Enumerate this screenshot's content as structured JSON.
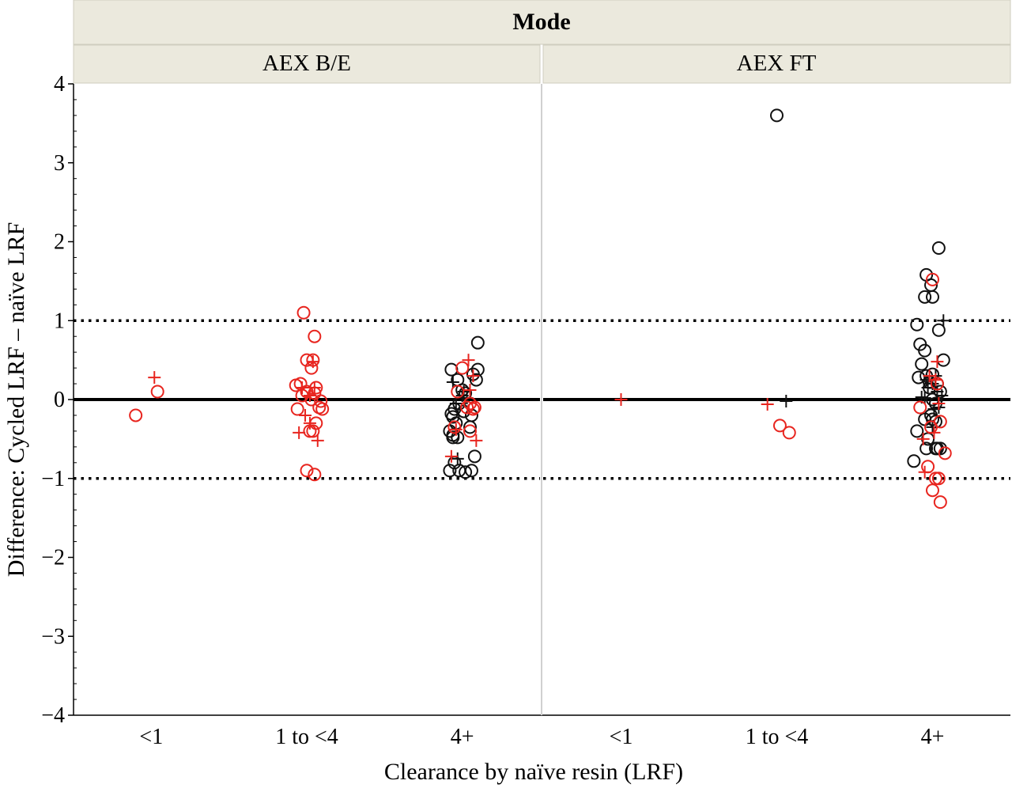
{
  "chart_data": {
    "type": "scatter",
    "facet_header": "Mode",
    "panels": [
      "AEX B/E",
      "AEX FT"
    ],
    "xlabel": "Clearance by naïve resin (LRF)",
    "ylabel": "Difference:  Cycled LRF – naïve LRF",
    "categories": [
      "<1",
      "1 to <4",
      "4+"
    ],
    "ylim": [
      -4,
      4
    ],
    "yticks": [
      "4",
      "3",
      "2",
      "1",
      "0",
      "−1",
      "−2",
      "−3",
      "−4"
    ],
    "reference_lines": [
      {
        "y": 0,
        "style": "solid"
      },
      {
        "y": 1,
        "style": "dotted"
      },
      {
        "y": -1,
        "style": "dotted"
      }
    ],
    "colors": {
      "red": "#e8251f",
      "black": "#111111",
      "strip": "#ebe9dd",
      "divider": "#d0d0d0"
    },
    "series": [
      {
        "panel": 0,
        "cat": 0,
        "marker": "circle",
        "color": "red",
        "jitter": [
          -0.1,
          0.04
        ],
        "values": [
          -0.2,
          0.1
        ]
      },
      {
        "panel": 0,
        "cat": 0,
        "marker": "plus",
        "color": "red",
        "jitter": [
          0.02
        ],
        "values": [
          0.28
        ]
      },
      {
        "panel": 0,
        "cat": 1,
        "marker": "circle",
        "color": "red",
        "jitter": [
          -0.02,
          0.05,
          0.04,
          0.0,
          0.03,
          -0.04,
          0.06,
          -0.07,
          0.0,
          0.05,
          -0.03,
          0.03,
          0.09,
          0.08,
          -0.06,
          0.1,
          0.06,
          0.04,
          0.02,
          0.0,
          0.05
        ],
        "values": [
          1.1,
          0.8,
          0.5,
          0.5,
          0.4,
          0.2,
          0.15,
          0.18,
          0.1,
          0.08,
          0.05,
          0.0,
          -0.02,
          -0.1,
          -0.12,
          -0.12,
          -0.3,
          -0.4,
          -0.4,
          -0.9,
          -0.95
        ]
      },
      {
        "panel": 0,
        "cat": 1,
        "marker": "plus",
        "color": "red",
        "jitter": [
          0.04,
          0.05,
          -0.03,
          0.02,
          -0.01,
          0.02,
          0.07,
          -0.05
        ],
        "values": [
          0.48,
          0.15,
          0.15,
          0.05,
          -0.2,
          -0.3,
          -0.52,
          -0.42
        ]
      },
      {
        "panel": 0,
        "cat": 2,
        "marker": "circle",
        "color": "black",
        "jitter": [
          0.1,
          -0.07,
          0.07,
          0.1,
          0.09,
          -0.03,
          0.0,
          0.02,
          -0.02,
          -0.05,
          -0.07,
          -0.06,
          -0.04,
          0.05,
          -0.08,
          -0.06,
          -0.03,
          0.08,
          -0.05,
          -0.08,
          -0.02,
          0.02,
          0.06,
          0.01,
          0.06,
          -0.06
        ],
        "values": [
          0.72,
          0.38,
          0.32,
          0.38,
          0.25,
          0.25,
          0.12,
          0.08,
          -0.05,
          -0.12,
          -0.18,
          -0.22,
          -0.3,
          -0.35,
          -0.4,
          -0.45,
          -0.48,
          -0.72,
          -0.8,
          -0.9,
          -0.9,
          -0.92,
          -0.9,
          -0.15,
          -0.2,
          -0.48
        ]
      },
      {
        "panel": 0,
        "cat": 2,
        "marker": "plus",
        "color": "black",
        "jitter": [
          -0.06,
          0.01,
          0.0,
          -0.04,
          0.03,
          -0.03
        ],
        "values": [
          0.22,
          0.1,
          0.05,
          -0.05,
          0.02,
          -0.75
        ]
      },
      {
        "panel": 0,
        "cat": 2,
        "marker": "circle",
        "color": "red",
        "jitter": [
          0.0,
          -0.03,
          0.05,
          0.03,
          0.07,
          -0.05,
          0.05,
          0.08
        ],
        "values": [
          0.4,
          0.1,
          -0.05,
          -0.1,
          -0.12,
          -0.35,
          -0.4,
          -0.1
        ]
      },
      {
        "panel": 0,
        "cat": 2,
        "marker": "plus",
        "color": "red",
        "jitter": [
          0.04,
          0.07,
          0.05,
          -0.04,
          0.09,
          -0.07
        ],
        "values": [
          0.5,
          0.3,
          0.12,
          -0.38,
          -0.52,
          -0.72
        ]
      },
      {
        "panel": 1,
        "cat": 0,
        "marker": "plus",
        "color": "red",
        "jitter": [
          0.0
        ],
        "values": [
          0.0
        ]
      },
      {
        "panel": 1,
        "cat": 1,
        "marker": "circle",
        "color": "black",
        "jitter": [
          0.0
        ],
        "values": [
          3.6
        ]
      },
      {
        "panel": 1,
        "cat": 1,
        "marker": "plus",
        "color": "black",
        "jitter": [
          0.06
        ],
        "values": [
          -0.02
        ]
      },
      {
        "panel": 1,
        "cat": 1,
        "marker": "plus",
        "color": "red",
        "jitter": [
          -0.06
        ],
        "values": [
          -0.06
        ]
      },
      {
        "panel": 1,
        "cat": 1,
        "marker": "circle",
        "color": "red",
        "jitter": [
          0.02,
          0.08
        ],
        "values": [
          -0.33,
          -0.42
        ]
      },
      {
        "panel": 1,
        "cat": 2,
        "marker": "circle",
        "color": "black",
        "jitter": [
          0.04,
          -0.04,
          -0.05,
          0.0,
          -0.01,
          -0.1,
          0.04,
          -0.08,
          0.07,
          -0.07,
          -0.05,
          -0.09,
          0.0,
          -0.04,
          -0.02,
          0.03,
          -0.02,
          0.05,
          0.02,
          -0.1,
          -0.01,
          -0.05,
          0.0,
          0.02,
          -0.03,
          0.05,
          0.03,
          -0.12,
          0.02,
          -0.04,
          0.0
        ],
        "values": [
          1.92,
          1.58,
          1.3,
          1.3,
          1.45,
          0.95,
          0.88,
          0.7,
          0.5,
          0.45,
          0.62,
          0.28,
          0.32,
          0.3,
          0.22,
          0.2,
          0.15,
          0.1,
          -0.05,
          -0.4,
          -0.2,
          -0.25,
          -0.25,
          -0.28,
          -0.5,
          -0.62,
          -0.62,
          -0.78,
          -0.62,
          -0.62,
          0.0
        ]
      },
      {
        "panel": 1,
        "cat": 2,
        "marker": "plus",
        "color": "black",
        "jitter": [
          0.07,
          0.02,
          -0.04,
          0.0,
          -0.03,
          0.03,
          0.06,
          -0.05,
          0.04,
          0.01,
          0.0,
          -0.07
        ],
        "values": [
          1.0,
          0.3,
          0.25,
          0.2,
          0.15,
          0.1,
          0.05,
          0.02,
          -0.1,
          -0.12,
          -0.35,
          0.03
        ]
      },
      {
        "panel": 1,
        "cat": 2,
        "marker": "circle",
        "color": "red",
        "jitter": [
          0.0,
          0.03,
          -0.08,
          0.05,
          -0.01,
          -0.03,
          0.02,
          0.0,
          0.05,
          0.04,
          0.08
        ],
        "values": [
          1.52,
          0.2,
          -0.1,
          -0.28,
          -0.35,
          -0.85,
          -1.0,
          -1.15,
          -1.3,
          -1.0,
          -0.68
        ]
      },
      {
        "panel": 1,
        "cat": 2,
        "marker": "plus",
        "color": "red",
        "jitter": [
          0.03,
          0.02,
          -0.02,
          0.04,
          -0.06,
          0.01,
          -0.05
        ],
        "values": [
          0.48,
          0.25,
          0.3,
          -0.05,
          -0.5,
          -0.42,
          -0.92
        ]
      }
    ]
  }
}
